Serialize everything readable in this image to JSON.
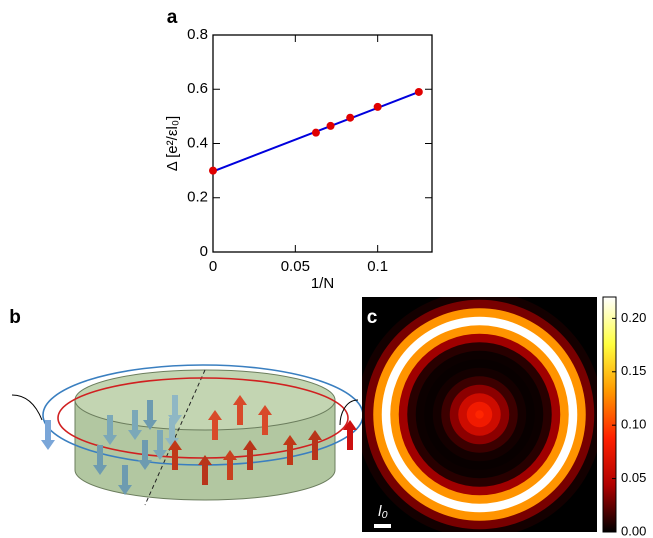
{
  "chart_data": [
    {
      "type": "line",
      "label": "a",
      "xlabel": "1/N",
      "ylabel": "Δ [e²/εl₀]",
      "xlim": [
        0,
        0.133
      ],
      "ylim": [
        0,
        0.8
      ],
      "xticks": [
        0,
        0.05,
        0.1
      ],
      "yticks": [
        0,
        0.2,
        0.4,
        0.6,
        0.8
      ],
      "series": [
        {
          "type": "line",
          "color": "#0000dd",
          "x": [
            0,
            0.125
          ],
          "values": [
            0.297,
            0.59
          ]
        },
        {
          "type": "scatter",
          "color": "#e00000",
          "x": [
            0,
            0.0625,
            0.0714,
            0.0833,
            0.1,
            0.125
          ],
          "values": [
            0.3,
            0.44,
            0.465,
            0.495,
            0.535,
            0.59
          ]
        }
      ]
    },
    {
      "type": "heatmap",
      "label": "c",
      "scale_label": "l₀",
      "r": [
        0,
        0.5,
        1,
        1.5,
        2,
        2.5,
        3,
        3.5,
        4,
        4.5,
        5,
        5.5,
        6,
        6.5,
        7
      ],
      "values": [
        0.09,
        0.08,
        0.06,
        0.035,
        0.015,
        0.005,
        0.002,
        0.003,
        0.01,
        0.04,
        0.13,
        0.22,
        0.13,
        0.03,
        0.005
      ],
      "colormap": [
        "#000000",
        "#b00000",
        "#ff2000",
        "#ff9900",
        "#ffff40",
        "#ffffff"
      ],
      "clim": [
        0,
        0.22
      ],
      "cticks": [
        {
          "value": 0,
          "label": "0.00"
        },
        0.05,
        {
          "value": 0.1,
          "label": "0.10"
        },
        0.15,
        {
          "value": 0.2,
          "label": "0.20"
        }
      ]
    }
  ],
  "diagram": {
    "label": "b"
  }
}
